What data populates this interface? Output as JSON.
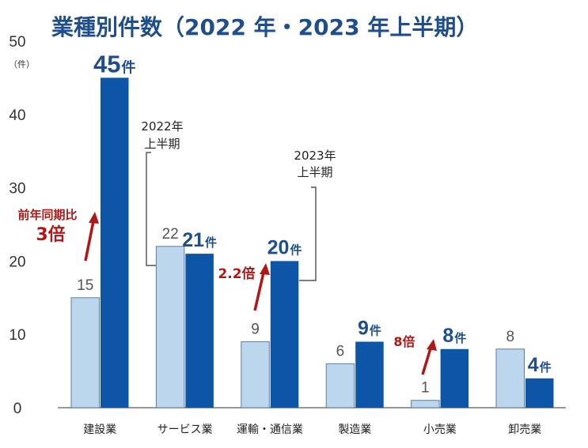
{
  "chart_data": {
    "type": "bar",
    "title": "業種別件数（2022 年・2023 年上半期）",
    "ylabel": "（件）",
    "ylim": [
      0,
      50
    ],
    "yticks": [
      "0",
      "10",
      "20",
      "30",
      "40",
      "50"
    ],
    "categories": [
      "建設業",
      "サービス業",
      "運輸・通信業",
      "製造業",
      "小売業",
      "卸売業"
    ],
    "series": [
      {
        "name": "2022年上半期",
        "values": [
          15,
          22,
          9,
          6,
          1,
          8
        ],
        "labels": [
          "15",
          "22",
          "9",
          "6",
          "1",
          "8"
        ]
      },
      {
        "name": "2023年上半期",
        "values": [
          45,
          21,
          20,
          9,
          8,
          4
        ],
        "labels": [
          "45",
          "21",
          "20",
          "9",
          "8",
          "4"
        ],
        "label_unit": "件"
      }
    ],
    "legend": {
      "series_2022_line1": "2022年",
      "series_2022_line2": "上半期",
      "series_2023_line1": "2023年",
      "series_2023_line2": "上半期"
    },
    "annotations": {
      "construction_prefix": "前年同期比",
      "construction_value": "3倍",
      "transport": "2.2倍",
      "retail": "8倍"
    },
    "colors": {
      "series_2022": "#bcd6ee",
      "series_2023": "#0c55a7",
      "bar_edge": "#5a7ea6",
      "growth": "#b01818",
      "title": "#1f4e8c"
    }
  }
}
